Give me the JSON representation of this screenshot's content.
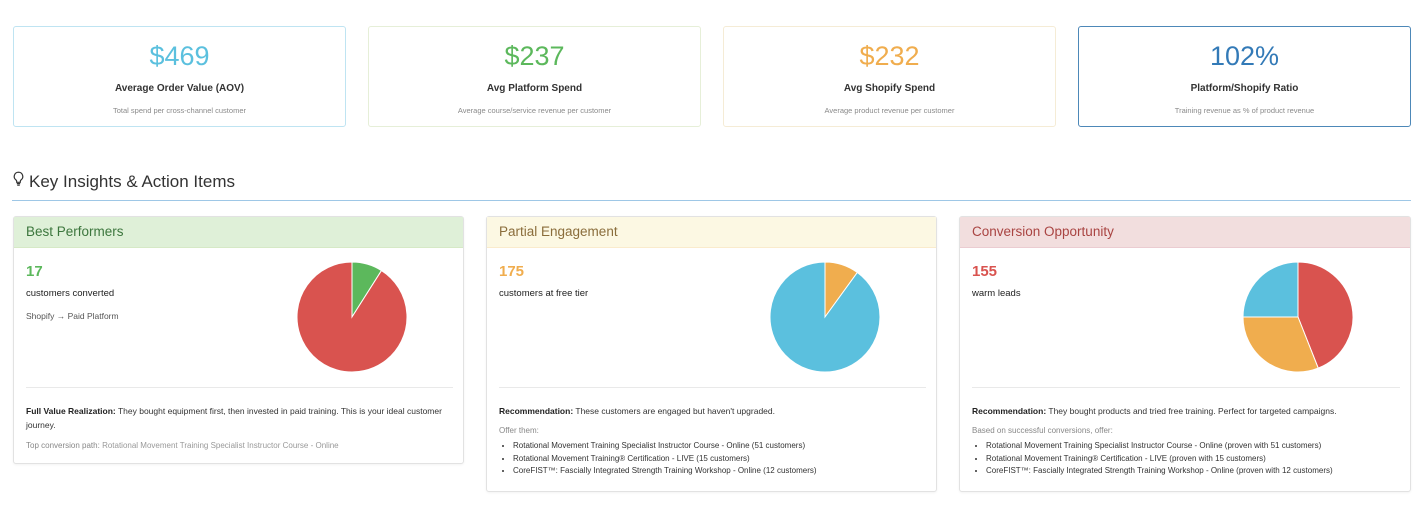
{
  "stats": [
    {
      "value": "$469",
      "label": "Average Order Value (AOV)",
      "sub": "Total spend per cross-channel customer",
      "color": "#5bc0de"
    },
    {
      "value": "$237",
      "label": "Avg Platform Spend",
      "sub": "Average course/service revenue per customer",
      "color": "#5cb85c"
    },
    {
      "value": "$232",
      "label": "Avg Shopify Spend",
      "sub": "Average product revenue per customer",
      "color": "#f0ad4e"
    },
    {
      "value": "102%",
      "label": "Platform/Shopify Ratio",
      "sub": "Training revenue as % of product revenue",
      "color": "#337ab7"
    }
  ],
  "section": {
    "title": "Key Insights & Action Items",
    "icon": "lightbulb-icon"
  },
  "panels": {
    "best": {
      "title": "Best Performers",
      "count": "17",
      "count_label": "customers converted",
      "path": "Shopify → Paid Platform",
      "note_strong": "Full Value Realization:",
      "note_text": "They bought equipment first, then invested in paid training. This is your ideal customer journey.",
      "top_label": "Top conversion path:",
      "top_value": "Rotational Movement Training Specialist Instructor Course - Online",
      "colors": {
        "header_bg": "#dff0d8",
        "header_text": "#3c763d",
        "number": "#5cb85c"
      }
    },
    "partial": {
      "title": "Partial Engagement",
      "count": "175",
      "count_label": "customers at free tier",
      "note_strong": "Recommendation:",
      "note_text": "These customers are engaged but haven't upgraded.",
      "offer_label": "Offer them:",
      "offers": [
        "Rotational Movement Training Specialist Instructor Course - Online (51 customers)",
        "Rotational Movement Training® Certification - LIVE (15 customers)",
        "CoreFIST™: Fascially Integrated Strength Training Workshop - Online (12 customers)"
      ],
      "colors": {
        "header_bg": "#fcf8e3",
        "header_text": "#8a6d3b",
        "number": "#f0ad4e"
      }
    },
    "conversion": {
      "title": "Conversion Opportunity",
      "count": "155",
      "count_label": "warm leads",
      "note_strong": "Recommendation:",
      "note_text": "They bought products and tried free training. Perfect for targeted campaigns.",
      "offer_label": "Based on successful conversions, offer:",
      "offers": [
        "Rotational Movement Training Specialist Instructor Course - Online (proven with 51 customers)",
        "Rotational Movement Training® Certification - LIVE (proven with 15 customers)",
        "CoreFIST™: Fascially Integrated Strength Training Workshop - Online (proven with 12 customers)"
      ],
      "colors": {
        "header_bg": "#f2dede",
        "header_text": "#a94442",
        "number": "#d9534f"
      }
    }
  },
  "pies": {
    "best": [
      {
        "value": 0.09,
        "color": "#5cb85c"
      },
      {
        "value": 0.91,
        "color": "#d9534f"
      }
    ],
    "partial": [
      {
        "value": 0.1,
        "color": "#f0ad4e"
      },
      {
        "value": 0.9,
        "color": "#5bc0de"
      }
    ],
    "conversion": [
      {
        "value": 0.44,
        "color": "#d9534f"
      },
      {
        "value": 0.31,
        "color": "#f0ad4e"
      },
      {
        "value": 0.25,
        "color": "#5bc0de"
      }
    ]
  }
}
